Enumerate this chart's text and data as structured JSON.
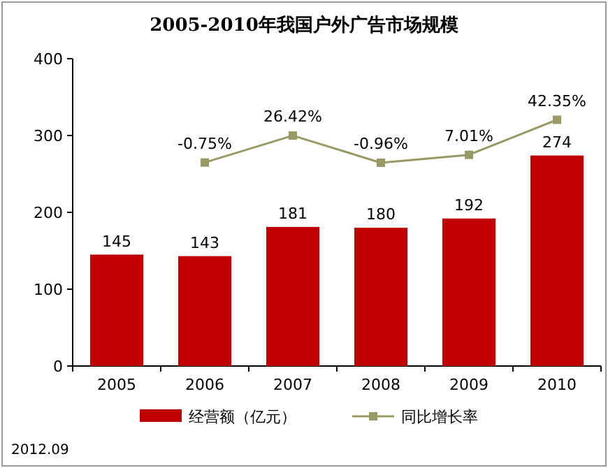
{
  "chart_data": {
    "type": "bar",
    "title": "2005-2010年我国户外广告市场规模",
    "categories": [
      "2005",
      "2006",
      "2007",
      "2008",
      "2009",
      "2010"
    ],
    "ylim": [
      0,
      400
    ],
    "yticks": [
      0,
      100,
      200,
      300,
      400
    ],
    "y2lim": [
      -206,
      104
    ],
    "legend": "bottom",
    "annotations": [
      "2012.09"
    ],
    "series": [
      {
        "name": "经营额（亿元）",
        "color": "#c00000",
        "values": [
          145,
          143,
          181,
          180,
          192,
          274
        ],
        "value_labels": [
          "145",
          "143",
          "181",
          "180",
          "192",
          "274"
        ]
      },
      {
        "name": "同比增长率",
        "type": "line",
        "axis": "y2",
        "color": "#999966",
        "marker": "square",
        "values": [
          null,
          -0.75,
          26.42,
          -0.96,
          7.01,
          42.35
        ],
        "value_labels": [
          null,
          "-0.75%",
          "26.42%",
          "-0.96%",
          "7.01%",
          "42.35%"
        ]
      }
    ]
  }
}
